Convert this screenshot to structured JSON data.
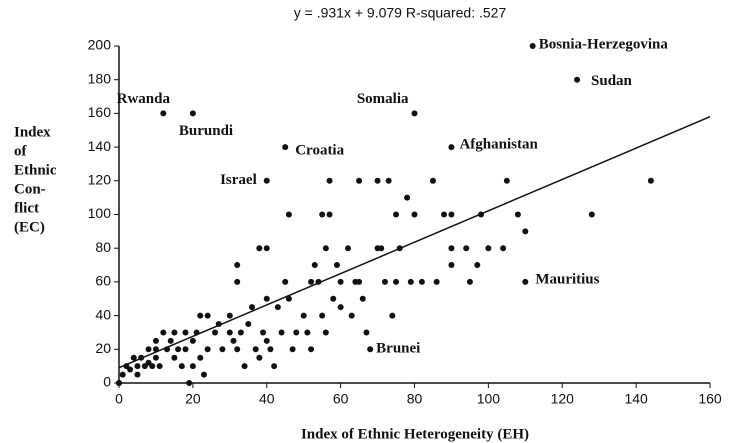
{
  "chart_data": {
    "type": "scatter",
    "title": "y = .931x + 9.079   R-squared: .527",
    "x_label": "Index of Ethnic Heterogeneity (EH)",
    "y_label_lines": [
      "Index",
      "of",
      "Ethnic",
      "Con-",
      "flict",
      "(EC)"
    ],
    "fit": {
      "slope": 0.931,
      "intercept": 9.079
    },
    "color": "#111111",
    "xlim": [
      0,
      160
    ],
    "ylim": [
      0,
      200
    ],
    "xticks": [
      0,
      20,
      40,
      60,
      80,
      100,
      120,
      140,
      160
    ],
    "yticks": [
      0,
      20,
      40,
      60,
      80,
      100,
      120,
      140,
      160,
      180,
      200
    ],
    "x": [
      0,
      0,
      1,
      2,
      3,
      4,
      5,
      5,
      6,
      7,
      8,
      8,
      9,
      10,
      10,
      10,
      11,
      12,
      13,
      14,
      15,
      15,
      16,
      17,
      18,
      18,
      19,
      20,
      20,
      21,
      22,
      22,
      23,
      24,
      24,
      26,
      27,
      28,
      30,
      30,
      31,
      32,
      32,
      32,
      33,
      34,
      35,
      36,
      37,
      38,
      38,
      39,
      40,
      40,
      40,
      41,
      42,
      43,
      44,
      45,
      46,
      46,
      47,
      48,
      50,
      51,
      52,
      52,
      53,
      54,
      55,
      55,
      56,
      56,
      57,
      57,
      58,
      59,
      60,
      60,
      62,
      63,
      64,
      65,
      65,
      66,
      67,
      70,
      70,
      71,
      72,
      73,
      74,
      75,
      75,
      76,
      78,
      79,
      80,
      82,
      85,
      86,
      88,
      90,
      90,
      90,
      94,
      95,
      97,
      98,
      100,
      104,
      105,
      108,
      110,
      128,
      144
    ],
    "values": [
      0,
      0,
      5,
      10,
      8,
      15,
      10,
      5,
      15,
      10,
      12,
      20,
      10,
      15,
      20,
      25,
      10,
      30,
      20,
      25,
      30,
      15,
      20,
      10,
      30,
      20,
      0,
      25,
      10,
      30,
      15,
      40,
      5,
      20,
      40,
      30,
      35,
      20,
      30,
      40,
      25,
      20,
      60,
      70,
      30,
      10,
      35,
      45,
      20,
      80,
      15,
      30,
      50,
      80,
      25,
      20,
      10,
      45,
      30,
      60,
      100,
      50,
      20,
      30,
      40,
      30,
      20,
      60,
      70,
      60,
      100,
      40,
      80,
      30,
      100,
      120,
      50,
      70,
      60,
      45,
      80,
      40,
      60,
      120,
      60,
      50,
      30,
      120,
      80,
      80,
      60,
      120,
      40,
      60,
      100,
      80,
      110,
      60,
      100,
      60,
      120,
      60,
      100,
      80,
      100,
      70,
      80,
      60,
      70,
      100,
      80,
      80,
      120,
      100,
      90,
      100,
      120
    ],
    "annotations": [
      {
        "text": "Rwanda",
        "x": 12,
        "y": 160
      },
      {
        "text": "Burundi",
        "x": 20,
        "y": 160
      },
      {
        "text": "Croatia",
        "x": 45,
        "y": 140
      },
      {
        "text": "Israel",
        "x": 40,
        "y": 120
      },
      {
        "text": "Somalia",
        "x": 80,
        "y": 160
      },
      {
        "text": "Afghanistan",
        "x": 90,
        "y": 140
      },
      {
        "text": "Bosnia-Herzegovina",
        "x": 112,
        "y": 200
      },
      {
        "text": "Sudan",
        "x": 124,
        "y": 180
      },
      {
        "text": "Mauritius",
        "x": 110,
        "y": 60
      },
      {
        "text": "Brunei",
        "x": 68,
        "y": 20
      }
    ]
  }
}
